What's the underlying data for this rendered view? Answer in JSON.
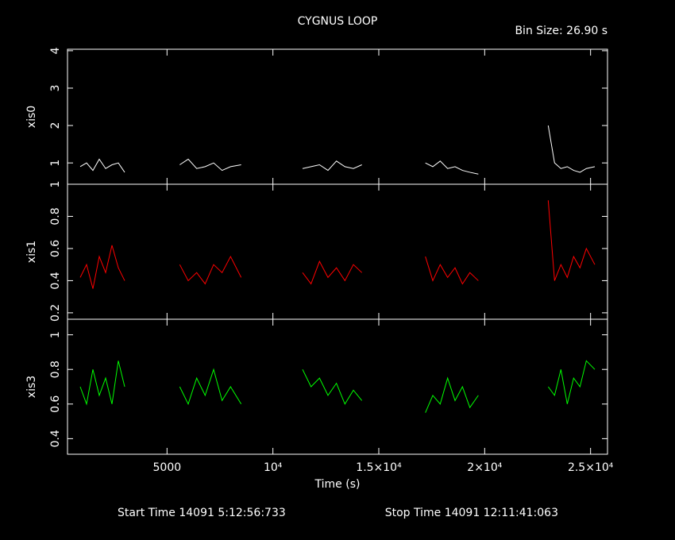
{
  "title": "CYGNUS LOOP",
  "subtitle": "Bin Size: 26.90 s",
  "footer": {
    "start": "Start Time 14091  5:12:56:733",
    "stop": "Stop Time 14091 12:11:41:063"
  },
  "chart_data": [
    {
      "type": "line",
      "ylabel": "xis0",
      "color": "#ffffff",
      "x": [
        900,
        1200,
        1500,
        1800,
        2100,
        2400,
        2700,
        3000,
        4300,
        5600,
        6000,
        6400,
        6800,
        7200,
        7600,
        8000,
        8500,
        10000,
        11400,
        11800,
        12200,
        12600,
        13000,
        13400,
        13800,
        14200,
        15700,
        17200,
        17550,
        17900,
        18250,
        18600,
        18950,
        19300,
        19700,
        21400,
        23000,
        23300,
        23600,
        23900,
        24200,
        24500,
        24800,
        25200
      ],
      "values": [
        0.9,
        1.0,
        0.8,
        1.1,
        0.85,
        0.95,
        1.0,
        0.75,
        null,
        0.95,
        1.1,
        0.85,
        0.9,
        1.0,
        0.8,
        0.9,
        0.95,
        null,
        0.85,
        0.9,
        0.95,
        0.8,
        1.05,
        0.9,
        0.85,
        0.95,
        null,
        1.0,
        0.9,
        1.05,
        0.85,
        0.9,
        0.8,
        0.75,
        0.7,
        null,
        2.0,
        1.0,
        0.85,
        0.9,
        0.8,
        0.75,
        0.85,
        0.9
      ],
      "xlim": [
        300,
        25800
      ],
      "ylim": [
        0.43,
        4.04
      ],
      "yticks": [
        1,
        2,
        3,
        4
      ]
    },
    {
      "type": "line",
      "ylabel": "xis1",
      "color": "#ff0000",
      "x": [
        900,
        1200,
        1500,
        1800,
        2100,
        2400,
        2700,
        3000,
        4300,
        5600,
        6000,
        6400,
        6800,
        7200,
        7600,
        8000,
        8500,
        10000,
        11400,
        11800,
        12200,
        12600,
        13000,
        13400,
        13800,
        14200,
        15700,
        17200,
        17550,
        17900,
        18250,
        18600,
        18950,
        19300,
        19700,
        21400,
        23000,
        23300,
        23600,
        23900,
        24200,
        24500,
        24800,
        25200
      ],
      "values": [
        0.42,
        0.5,
        0.35,
        0.55,
        0.45,
        0.62,
        0.48,
        0.4,
        null,
        0.5,
        0.4,
        0.45,
        0.38,
        0.5,
        0.45,
        0.55,
        0.42,
        null,
        0.45,
        0.38,
        0.52,
        0.42,
        0.48,
        0.4,
        0.5,
        0.45,
        null,
        0.55,
        0.4,
        0.5,
        0.42,
        0.48,
        0.38,
        0.45,
        0.4,
        null,
        0.9,
        0.4,
        0.5,
        0.42,
        0.55,
        0.48,
        0.6,
        0.5
      ],
      "xlim": [
        300,
        25800
      ],
      "ylim": [
        0.16,
        1.0
      ],
      "yticks": [
        0.2,
        0.4,
        0.6,
        0.8,
        1
      ]
    },
    {
      "type": "line",
      "ylabel": "xis3",
      "color": "#00ff00",
      "xlabel": "Time (s)",
      "x": [
        900,
        1200,
        1500,
        1800,
        2100,
        2400,
        2700,
        3000,
        4300,
        5600,
        6000,
        6400,
        6800,
        7200,
        7600,
        8000,
        8500,
        10000,
        11400,
        11800,
        12200,
        12600,
        13000,
        13400,
        13800,
        14200,
        15700,
        17200,
        17550,
        17900,
        18250,
        18600,
        18950,
        19300,
        19700,
        21400,
        23000,
        23300,
        23600,
        23900,
        24200,
        24500,
        24800,
        25200
      ],
      "values": [
        0.7,
        0.6,
        0.8,
        0.65,
        0.75,
        0.6,
        0.85,
        0.7,
        null,
        0.7,
        0.6,
        0.75,
        0.65,
        0.8,
        0.62,
        0.7,
        0.6,
        null,
        0.8,
        0.7,
        0.75,
        0.65,
        0.72,
        0.6,
        0.68,
        0.62,
        null,
        0.55,
        0.65,
        0.6,
        0.75,
        0.62,
        0.7,
        0.58,
        0.65,
        null,
        0.7,
        0.65,
        0.8,
        0.6,
        0.75,
        0.7,
        0.85,
        0.8
      ],
      "xlim": [
        300,
        25800
      ],
      "ylim": [
        0.31,
        1.09
      ],
      "yticks": [
        0.4,
        0.6,
        0.8,
        1
      ],
      "xticks": [
        5000,
        {
          "value": 10000,
          "label": "10⁴"
        },
        {
          "value": 15000,
          "label": "1.5×10⁴"
        },
        {
          "value": 20000,
          "label": "2×10⁴"
        },
        {
          "value": 25000,
          "label": "2.5×10⁴"
        }
      ]
    }
  ]
}
